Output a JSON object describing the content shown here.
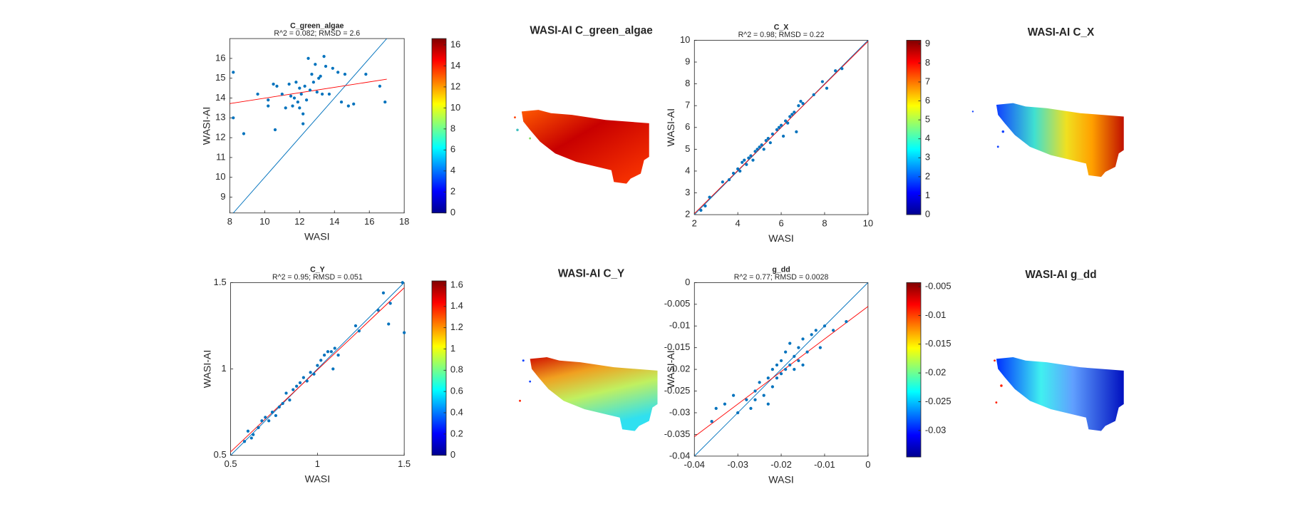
{
  "chart_data": [
    {
      "type": "scatter",
      "title": "C_green_algae",
      "subtitle": "R^2 = 0.082; RMSD = 2.6",
      "xlabel": "WASI",
      "ylabel": "WASI-AI",
      "map_title": "WASI-AI C_green_algae",
      "color": "#0072bd",
      "fit_color": "#ff0000",
      "xlim": [
        8,
        18
      ],
      "ylim": [
        8.2,
        17
      ],
      "xticks": [
        8,
        10,
        12,
        14,
        16,
        18
      ],
      "yticks": [
        9,
        10,
        11,
        12,
        13,
        14,
        15,
        16
      ],
      "x": [
        8.2,
        8.2,
        8.8,
        9.6,
        10.2,
        10.2,
        10.5,
        10.6,
        10.7,
        11,
        11.2,
        11.4,
        11.5,
        11.6,
        11.7,
        11.8,
        11.9,
        12,
        12,
        12.1,
        12.2,
        12.2,
        12.3,
        12.4,
        12.5,
        12.6,
        12.7,
        12.8,
        12.9,
        13,
        13.1,
        13.2,
        13.3,
        13.4,
        13.5,
        13.7,
        13.9,
        14.2,
        14.4,
        14.6,
        14.8,
        15.1,
        15.8,
        16.6,
        16.9
      ],
      "values": [
        15.3,
        13,
        12.2,
        14.2,
        13.9,
        13.6,
        14.7,
        12.4,
        14.6,
        14.2,
        13.5,
        14.7,
        14.1,
        13.6,
        14,
        14.8,
        13.8,
        14.5,
        13.5,
        14.2,
        13.2,
        12.7,
        14.6,
        13.9,
        16,
        14.4,
        15.2,
        14.8,
        15.7,
        14.3,
        15,
        15.1,
        14.2,
        16.1,
        15.6,
        14.2,
        15.5,
        15.3,
        13.8,
        15.2,
        13.6,
        13.7,
        15.2,
        14.6,
        13.8
      ],
      "fit": {
        "x": [
          8,
          17
        ],
        "y": [
          13.72,
          14.95
        ]
      },
      "colorbar": {
        "lim": [
          0,
          16.6
        ],
        "ticks": [
          0,
          2,
          4,
          6,
          8,
          10,
          12,
          14,
          16
        ]
      }
    },
    {
      "type": "scatter",
      "title": "C_X",
      "subtitle": "R^2 = 0.98; RMSD = 0.22",
      "xlabel": "WASI",
      "ylabel": "WASI-AI",
      "map_title": "WASI-AI C_X",
      "color": "#0072bd",
      "fit_color": "#ff0000",
      "xlim": [
        2,
        10
      ],
      "ylim": [
        2,
        10
      ],
      "xticks": [
        2,
        4,
        6,
        8,
        10
      ],
      "yticks": [
        2,
        3,
        4,
        5,
        6,
        7,
        8,
        9,
        10
      ],
      "x": [
        2.3,
        2.5,
        2.7,
        3.3,
        3.6,
        3.8,
        4,
        4.1,
        4.2,
        4.3,
        4.4,
        4.5,
        4.6,
        4.7,
        4.8,
        4.9,
        5,
        5.1,
        5.2,
        5.3,
        5.4,
        5.5,
        5.6,
        5.8,
        5.9,
        6,
        6.1,
        6.2,
        6.3,
        6.4,
        6.5,
        6.6,
        6.7,
        6.8,
        6.9,
        7,
        7.5,
        7.9,
        8.1,
        8.5,
        8.8
      ],
      "values": [
        2.2,
        2.4,
        2.8,
        3.5,
        3.6,
        3.9,
        4.1,
        4,
        4.4,
        4.5,
        4.3,
        4.6,
        4.7,
        4.5,
        4.9,
        5,
        5.1,
        5.2,
        5,
        5.4,
        5.5,
        5.3,
        5.7,
        5.9,
        6,
        6.1,
        5.6,
        6.3,
        6.2,
        6.5,
        6.6,
        6.7,
        5.8,
        7,
        7.2,
        7.1,
        7.5,
        8.1,
        7.8,
        8.6,
        8.7
      ],
      "fit": {
        "x": [
          2,
          10
        ],
        "y": [
          2.05,
          9.95
        ]
      },
      "colorbar": {
        "lim": [
          0,
          9.2
        ],
        "ticks": [
          0,
          1,
          2,
          3,
          4,
          5,
          6,
          7,
          8,
          9
        ]
      }
    },
    {
      "type": "scatter",
      "title": "C_Y",
      "subtitle": "R^2 = 0.95; RMSD = 0.051",
      "xlabel": "WASI",
      "ylabel": "WASI-AI",
      "map_title": "WASI-AI C_Y",
      "color": "#0072bd",
      "fit_color": "#ff0000",
      "xlim": [
        0.5,
        1.5
      ],
      "ylim": [
        0.5,
        1.5
      ],
      "xticks": [
        0.5,
        1,
        1.5
      ],
      "yticks": [
        0.5,
        1,
        1.5
      ],
      "x": [
        0.58,
        0.6,
        0.62,
        0.63,
        0.66,
        0.68,
        0.7,
        0.72,
        0.74,
        0.76,
        0.78,
        0.8,
        0.82,
        0.84,
        0.86,
        0.88,
        0.9,
        0.92,
        0.94,
        0.96,
        0.98,
        1,
        1.02,
        1.04,
        1.06,
        1.08,
        1.1,
        1.09,
        1.12,
        1.22,
        1.24,
        1.35,
        1.38,
        1.41,
        1.42,
        1.49,
        1.5
      ],
      "values": [
        0.58,
        0.64,
        0.6,
        0.62,
        0.66,
        0.7,
        0.72,
        0.7,
        0.75,
        0.73,
        0.78,
        0.8,
        0.86,
        0.82,
        0.88,
        0.9,
        0.92,
        0.95,
        0.93,
        0.98,
        0.97,
        1.02,
        1.05,
        1.08,
        1.1,
        1.1,
        1.12,
        1,
        1.08,
        1.25,
        1.22,
        1.34,
        1.44,
        1.26,
        1.38,
        1.5,
        1.21
      ],
      "fit": {
        "x": [
          0.5,
          1.5
        ],
        "y": [
          0.52,
          1.47
        ]
      },
      "colorbar": {
        "lim": [
          0,
          1.64
        ],
        "ticks": [
          0,
          0.2,
          0.4,
          0.6,
          0.8,
          1,
          1.2,
          1.4,
          1.6
        ]
      }
    },
    {
      "type": "scatter",
      "title": "g_dd",
      "subtitle": "R^2 = 0.77; RMSD = 0.0028",
      "xlabel": "WASI",
      "ylabel": "WASI-AI",
      "map_title": "WASI-AI g_dd",
      "color": "#0072bd",
      "fit_color": "#ff0000",
      "xlim": [
        -0.04,
        0
      ],
      "ylim": [
        -0.04,
        0
      ],
      "xticks": [
        -0.04,
        -0.03,
        -0.02,
        -0.01,
        0
      ],
      "yticks": [
        -0.04,
        -0.035,
        -0.03,
        -0.025,
        -0.02,
        -0.015,
        -0.01,
        -0.005,
        0
      ],
      "x": [
        -0.036,
        -0.035,
        -0.033,
        -0.031,
        -0.03,
        -0.028,
        -0.027,
        -0.026,
        -0.026,
        -0.025,
        -0.024,
        -0.023,
        -0.023,
        -0.022,
        -0.022,
        -0.021,
        -0.021,
        -0.02,
        -0.02,
        -0.019,
        -0.019,
        -0.018,
        -0.018,
        -0.017,
        -0.017,
        -0.016,
        -0.016,
        -0.015,
        -0.015,
        -0.014,
        -0.013,
        -0.012,
        -0.011,
        -0.01,
        -0.008,
        -0.005
      ],
      "values": [
        -0.032,
        -0.029,
        -0.028,
        -0.026,
        -0.03,
        -0.027,
        -0.029,
        -0.025,
        -0.027,
        -0.023,
        -0.026,
        -0.022,
        -0.028,
        -0.02,
        -0.024,
        -0.019,
        -0.022,
        -0.021,
        -0.018,
        -0.02,
        -0.016,
        -0.019,
        -0.014,
        -0.02,
        -0.017,
        -0.018,
        -0.015,
        -0.013,
        -0.019,
        -0.016,
        -0.012,
        -0.011,
        -0.015,
        -0.01,
        -0.011,
        -0.009
      ],
      "fit": {
        "x": [
          -0.04,
          0
        ],
        "y": [
          -0.0355,
          -0.0055
        ]
      },
      "colorbar": {
        "lim": [
          -0.0346,
          -0.0043
        ],
        "ticks": [
          -0.03,
          -0.025,
          -0.02,
          -0.015,
          -0.01,
          -0.005
        ]
      }
    }
  ]
}
